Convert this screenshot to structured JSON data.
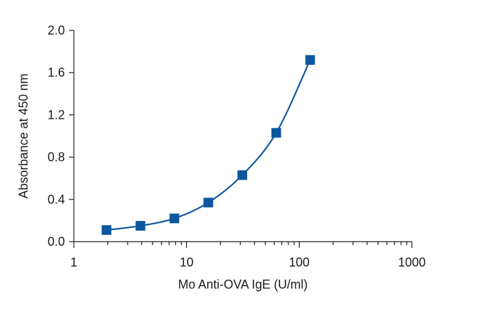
{
  "chart_data": {
    "type": "line",
    "xlabel": "Mo Anti-OVA IgE (U/ml)",
    "ylabel": "Absorbance at 450 nm",
    "xscale": "log",
    "xlim": [
      1,
      1000
    ],
    "ylim": [
      0,
      2.0
    ],
    "x_ticks": [
      "1",
      "10",
      "100",
      "1000"
    ],
    "y_ticks": [
      "0.0",
      "0.4",
      "0.8",
      "1.2",
      "1.6",
      "2.0"
    ],
    "grid": false,
    "legend": "none",
    "series": [
      {
        "marker": "square",
        "color": "#0d57a0",
        "x": [
          1.95,
          3.9,
          7.8,
          15.6,
          31.25,
          62.5,
          125
        ],
        "y": [
          0.11,
          0.15,
          0.22,
          0.37,
          0.63,
          1.03,
          1.72
        ]
      }
    ]
  }
}
